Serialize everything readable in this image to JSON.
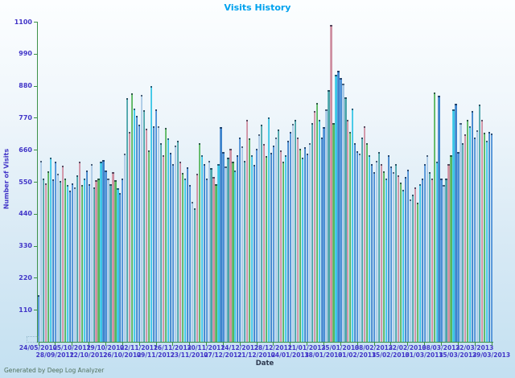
{
  "title": "Visits History",
  "footer": "Generated by Deep Log Analyzer",
  "colors": {
    "title": "#00a2ee",
    "axis": "#3c9148",
    "tick_label": "#4236c8",
    "x_axis_title": "#2e3a50",
    "footer": "#50705c",
    "bar_cap": "rgba(8,24,48,0.6)",
    "bar_palette": [
      "#4a8fd6",
      "#a9c9e6",
      "#4aa4aa",
      "#ce8fa2",
      "#57b65e",
      "#3ac6e6",
      "#3d83cc"
    ]
  },
  "chart_data": {
    "type": "bar",
    "title": "Visits History",
    "xlabel": "Date",
    "ylabel": "Number of Visits",
    "ylim": [
      0,
      1100
    ],
    "yticks": [
      110,
      220,
      330,
      440,
      550,
      660,
      770,
      880,
      990,
      1100
    ],
    "grid": false,
    "legend": false,
    "bars_per_tick": 7,
    "x_tick_labels_row1": [
      "24/05/2012",
      "05/10/2012",
      "19/10/2012",
      "02/11/2012",
      "16/11/2012",
      "30/11/2012",
      "14/12/2012",
      "28/12/2012",
      "11/01/2013",
      "25/01/2013",
      "08/02/2013",
      "22/02/2013",
      "08/03/2013",
      "22/03/2013"
    ],
    "x_tick_labels_row2": [
      "28/09/2012",
      "12/10/2012",
      "26/10/2012",
      "09/11/2012",
      "23/11/2012",
      "07/12/2012",
      "21/12/2012",
      "04/01/2013",
      "18/01/2013",
      "01/02/2013",
      "15/02/2013",
      "01/03/2013",
      "15/03/2013",
      "29/03/2013"
    ],
    "values": [
      160,
      622,
      560,
      545,
      586,
      632,
      558,
      618,
      578,
      552,
      605,
      562,
      540,
      520,
      545,
      530,
      572,
      618,
      540,
      562,
      588,
      542,
      612,
      532,
      556,
      562,
      618,
      624,
      588,
      560,
      542,
      584,
      556,
      528,
      512,
      562,
      648,
      838,
      722,
      855,
      802,
      778,
      745,
      848,
      795,
      732,
      658,
      878,
      742,
      800,
      740,
      682,
      640,
      736,
      700,
      650,
      610,
      674,
      690,
      620,
      580,
      560,
      600,
      540,
      482,
      458,
      578,
      682,
      642,
      612,
      562,
      622,
      596,
      566,
      542,
      612,
      738,
      652,
      602,
      632,
      662,
      618,
      588,
      642,
      702,
      672,
      622,
      762,
      698,
      642,
      608,
      662,
      712,
      745,
      680,
      638,
      772,
      650,
      674,
      702,
      730,
      658,
      620,
      642,
      690,
      722,
      748,
      764,
      702,
      662,
      634,
      670,
      648,
      682,
      752,
      792,
      822,
      762,
      702,
      738,
      798,
      864,
      1090,
      752,
      918,
      932,
      906,
      886,
      840,
      762,
      722,
      802,
      682,
      656,
      648,
      702,
      740,
      682,
      642,
      612,
      582,
      622,
      652,
      612,
      586,
      562,
      640,
      602,
      582,
      612,
      572,
      546,
      522,
      566,
      592,
      488,
      506,
      530,
      478,
      542,
      562,
      612,
      642,
      582,
      562,
      858,
      618,
      846,
      562,
      538,
      562,
      612,
      642,
      798,
      818,
      652,
      752,
      682,
      712,
      762,
      742,
      792,
      702,
      726,
      816,
      762,
      718,
      692,
      722,
      715
    ]
  }
}
